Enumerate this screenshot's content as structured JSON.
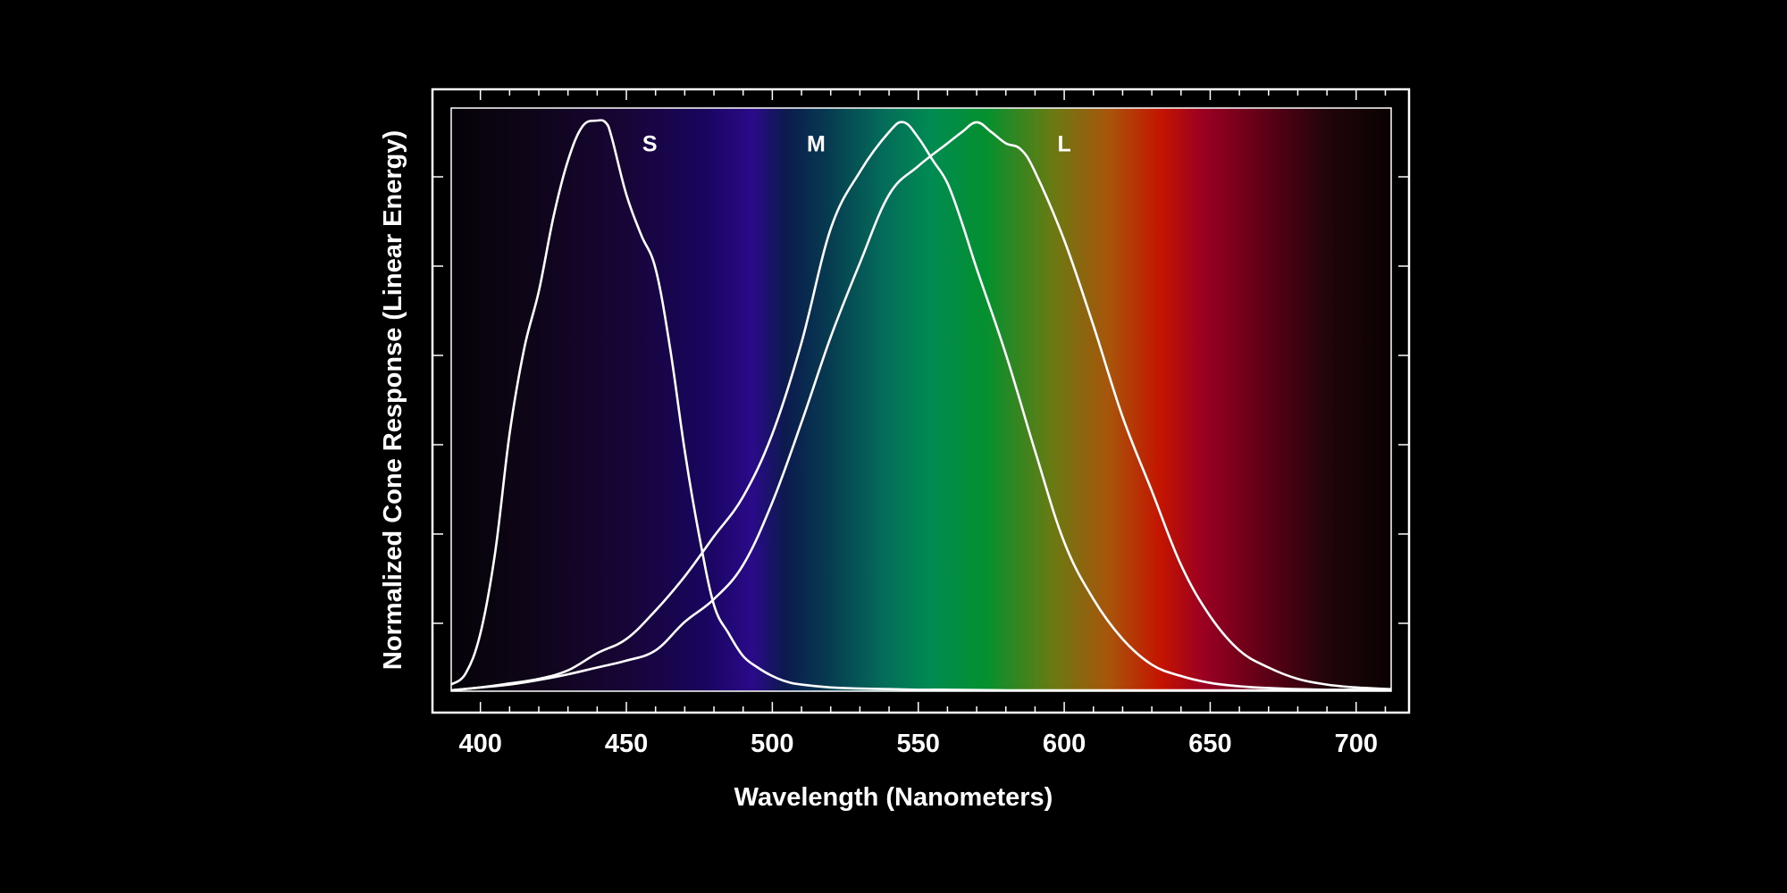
{
  "chart_data": {
    "type": "line",
    "xlabel": "Wavelength (Nanometers)",
    "ylabel": "Normalized Cone Response (Linear Energy)",
    "xlim": [
      390,
      712
    ],
    "ylim": [
      0,
      1
    ],
    "grid": true,
    "x_ticks": [
      400,
      450,
      500,
      550,
      600,
      650,
      700
    ],
    "x_tick_labels": [
      "400",
      "450",
      "500",
      "550",
      "600",
      "650",
      "700"
    ],
    "background": "visible spectrum gradient",
    "curve_color": "#ffffff",
    "series": [
      {
        "name": "S",
        "x": [
          390,
          395,
          400,
          405,
          410,
          415,
          420,
          425,
          430,
          435,
          440,
          443,
          445,
          450,
          455,
          460,
          465,
          470,
          475,
          480,
          485,
          490,
          495,
          500,
          505,
          510,
          520,
          530,
          540,
          550,
          560,
          580,
          600,
          650,
          700,
          712
        ],
        "values": [
          0.01,
          0.03,
          0.1,
          0.24,
          0.45,
          0.6,
          0.7,
          0.83,
          0.93,
          0.99,
          1.0,
          0.996,
          0.97,
          0.87,
          0.8,
          0.74,
          0.6,
          0.42,
          0.27,
          0.15,
          0.1,
          0.06,
          0.04,
          0.025,
          0.015,
          0.01,
          0.005,
          0.003,
          0.002,
          0.001,
          0.001,
          0.0,
          0.0,
          0.0,
          0.0,
          0.0
        ]
      },
      {
        "name": "M",
        "x": [
          390,
          400,
          410,
          420,
          430,
          440,
          450,
          460,
          470,
          480,
          490,
          500,
          510,
          520,
          530,
          540,
          545,
          550,
          555,
          560,
          565,
          570,
          580,
          590,
          600,
          610,
          620,
          630,
          640,
          650,
          660,
          670,
          680,
          690,
          700,
          712
        ],
        "values": [
          0.0,
          0.005,
          0.012,
          0.02,
          0.035,
          0.065,
          0.09,
          0.14,
          0.2,
          0.27,
          0.34,
          0.45,
          0.61,
          0.81,
          0.91,
          0.98,
          0.997,
          0.97,
          0.93,
          0.89,
          0.82,
          0.74,
          0.59,
          0.42,
          0.26,
          0.16,
          0.09,
          0.045,
          0.025,
          0.013,
          0.007,
          0.004,
          0.002,
          0.001,
          0.001,
          0.0
        ]
      },
      {
        "name": "L",
        "x": [
          390,
          400,
          410,
          420,
          430,
          440,
          450,
          460,
          470,
          480,
          490,
          500,
          510,
          520,
          530,
          540,
          550,
          560,
          565,
          570,
          575,
          580,
          585,
          590,
          600,
          610,
          620,
          630,
          640,
          650,
          660,
          670,
          680,
          690,
          700,
          712
        ],
        "values": [
          0.0,
          0.005,
          0.01,
          0.018,
          0.028,
          0.04,
          0.052,
          0.07,
          0.12,
          0.16,
          0.22,
          0.33,
          0.47,
          0.62,
          0.75,
          0.87,
          0.92,
          0.96,
          0.98,
          0.997,
          0.98,
          0.96,
          0.95,
          0.91,
          0.79,
          0.64,
          0.48,
          0.35,
          0.22,
          0.13,
          0.07,
          0.04,
          0.02,
          0.01,
          0.005,
          0.002
        ]
      }
    ],
    "curve_labels": [
      {
        "text": "S",
        "x": 458,
        "y": 0.96
      },
      {
        "text": "M",
        "x": 515,
        "y": 0.96
      },
      {
        "text": "L",
        "x": 600,
        "y": 0.96
      }
    ]
  }
}
